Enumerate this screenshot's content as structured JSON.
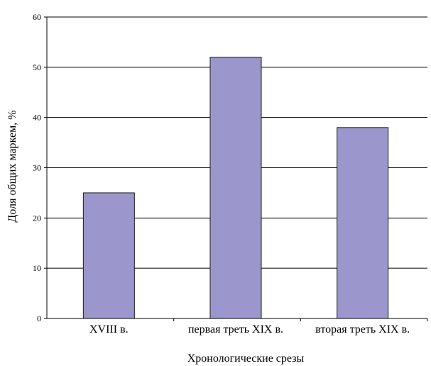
{
  "chart_data": {
    "type": "bar",
    "categories": [
      "XVIII в.",
      "первая треть XIX в.",
      "вторая треть XIX в."
    ],
    "values": [
      25,
      52,
      38
    ],
    "xlabel": "Хронологические срезы",
    "ylabel": "Доля общих маркем, %",
    "ylim": [
      0,
      60
    ],
    "yticks": [
      0,
      10,
      20,
      30,
      40,
      50,
      60
    ],
    "grid": true,
    "legend": "none",
    "colors": {
      "bar_fill": "#9b96cc",
      "bar_stroke": "#1a1a1a",
      "grid": "#000000",
      "axis": "#000000"
    }
  }
}
